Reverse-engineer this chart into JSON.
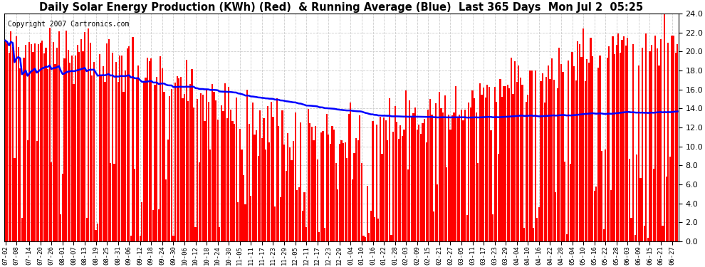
{
  "title": "Daily Solar Energy Production (KWh) (Red)  & Running Average (Blue)  Last 365 Days  Mon Jul 2  05:25",
  "copyright": "Copyright 2007 Cartronics.com",
  "ylim": [
    0.0,
    24.0
  ],
  "yticks": [
    0.0,
    2.0,
    4.0,
    6.0,
    8.0,
    10.0,
    12.0,
    14.0,
    16.0,
    18.0,
    20.0,
    22.0,
    24.0
  ],
  "bar_color": "#ff0000",
  "avg_color": "#0000ff",
  "bg_color": "#ffffff",
  "grid_color": "#cccccc",
  "title_fontsize": 10.5,
  "copyright_fontsize": 7,
  "bar_width": 0.85,
  "avg_linewidth": 1.8,
  "x_tick_labels": [
    "07-02",
    "07-08",
    "07-14",
    "07-20",
    "07-26",
    "08-01",
    "08-07",
    "08-13",
    "08-19",
    "08-25",
    "08-31",
    "09-06",
    "09-12",
    "09-18",
    "09-24",
    "09-30",
    "10-06",
    "10-12",
    "10-18",
    "10-24",
    "10-30",
    "11-05",
    "11-11",
    "11-17",
    "11-23",
    "11-29",
    "12-05",
    "12-11",
    "12-17",
    "12-23",
    "12-29",
    "01-04",
    "01-10",
    "01-16",
    "01-22",
    "01-28",
    "02-03",
    "02-09",
    "02-15",
    "02-21",
    "02-27",
    "03-05",
    "03-11",
    "03-17",
    "03-23",
    "03-29",
    "04-04",
    "04-10",
    "04-16",
    "04-22",
    "04-28",
    "05-04",
    "05-10",
    "05-16",
    "05-22",
    "05-28",
    "06-03",
    "06-09",
    "06-15",
    "06-21",
    "06-27"
  ],
  "x_tick_positions": [
    0,
    6,
    13,
    19,
    25,
    31,
    37,
    43,
    49,
    55,
    61,
    67,
    73,
    79,
    85,
    91,
    97,
    103,
    109,
    115,
    121,
    127,
    133,
    139,
    145,
    151,
    157,
    163,
    169,
    175,
    181,
    187,
    193,
    199,
    205,
    211,
    217,
    223,
    229,
    235,
    241,
    247,
    253,
    259,
    265,
    271,
    277,
    283,
    289,
    295,
    301,
    307,
    313,
    319,
    325,
    331,
    337,
    343,
    349,
    355,
    361
  ],
  "n_days": 365,
  "figwidth": 9.9,
  "figheight": 3.75,
  "dpi": 100
}
